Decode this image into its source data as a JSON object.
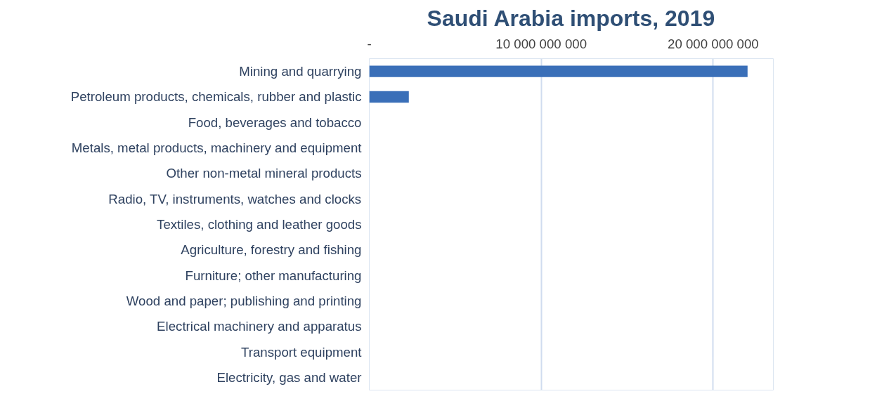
{
  "chart_data": {
    "type": "bar",
    "orientation": "horizontal",
    "title": "Saudi Arabia imports, 2019",
    "categories": [
      "Mining and quarrying",
      "Petroleum products, chemicals, rubber and plastic",
      "Food, beverages and tobacco",
      "Metals, metal products, machinery and equipment",
      "Other non-metal mineral products",
      "Radio, TV, instruments, watches and clocks",
      "Textiles, clothing and leather goods",
      "Agriculture, forestry and fishing",
      "Furniture; other manufacturing",
      "Wood and paper; publishing and printing",
      "Electrical machinery and apparatus",
      "Transport equipment",
      "Electricity, gas and water"
    ],
    "values": [
      22000000000,
      2300000000,
      0,
      0,
      0,
      0,
      0,
      0,
      0,
      0,
      0,
      0,
      0
    ],
    "color": "#3a6fb8",
    "xlim": [
      0,
      23500000000
    ],
    "xticks": [
      {
        "value": 0,
        "label": "-"
      },
      {
        "value": 10000000000,
        "label": "10 000 000 000"
      },
      {
        "value": 20000000000,
        "label": "20 000 000 000"
      }
    ],
    "grid": "x"
  }
}
